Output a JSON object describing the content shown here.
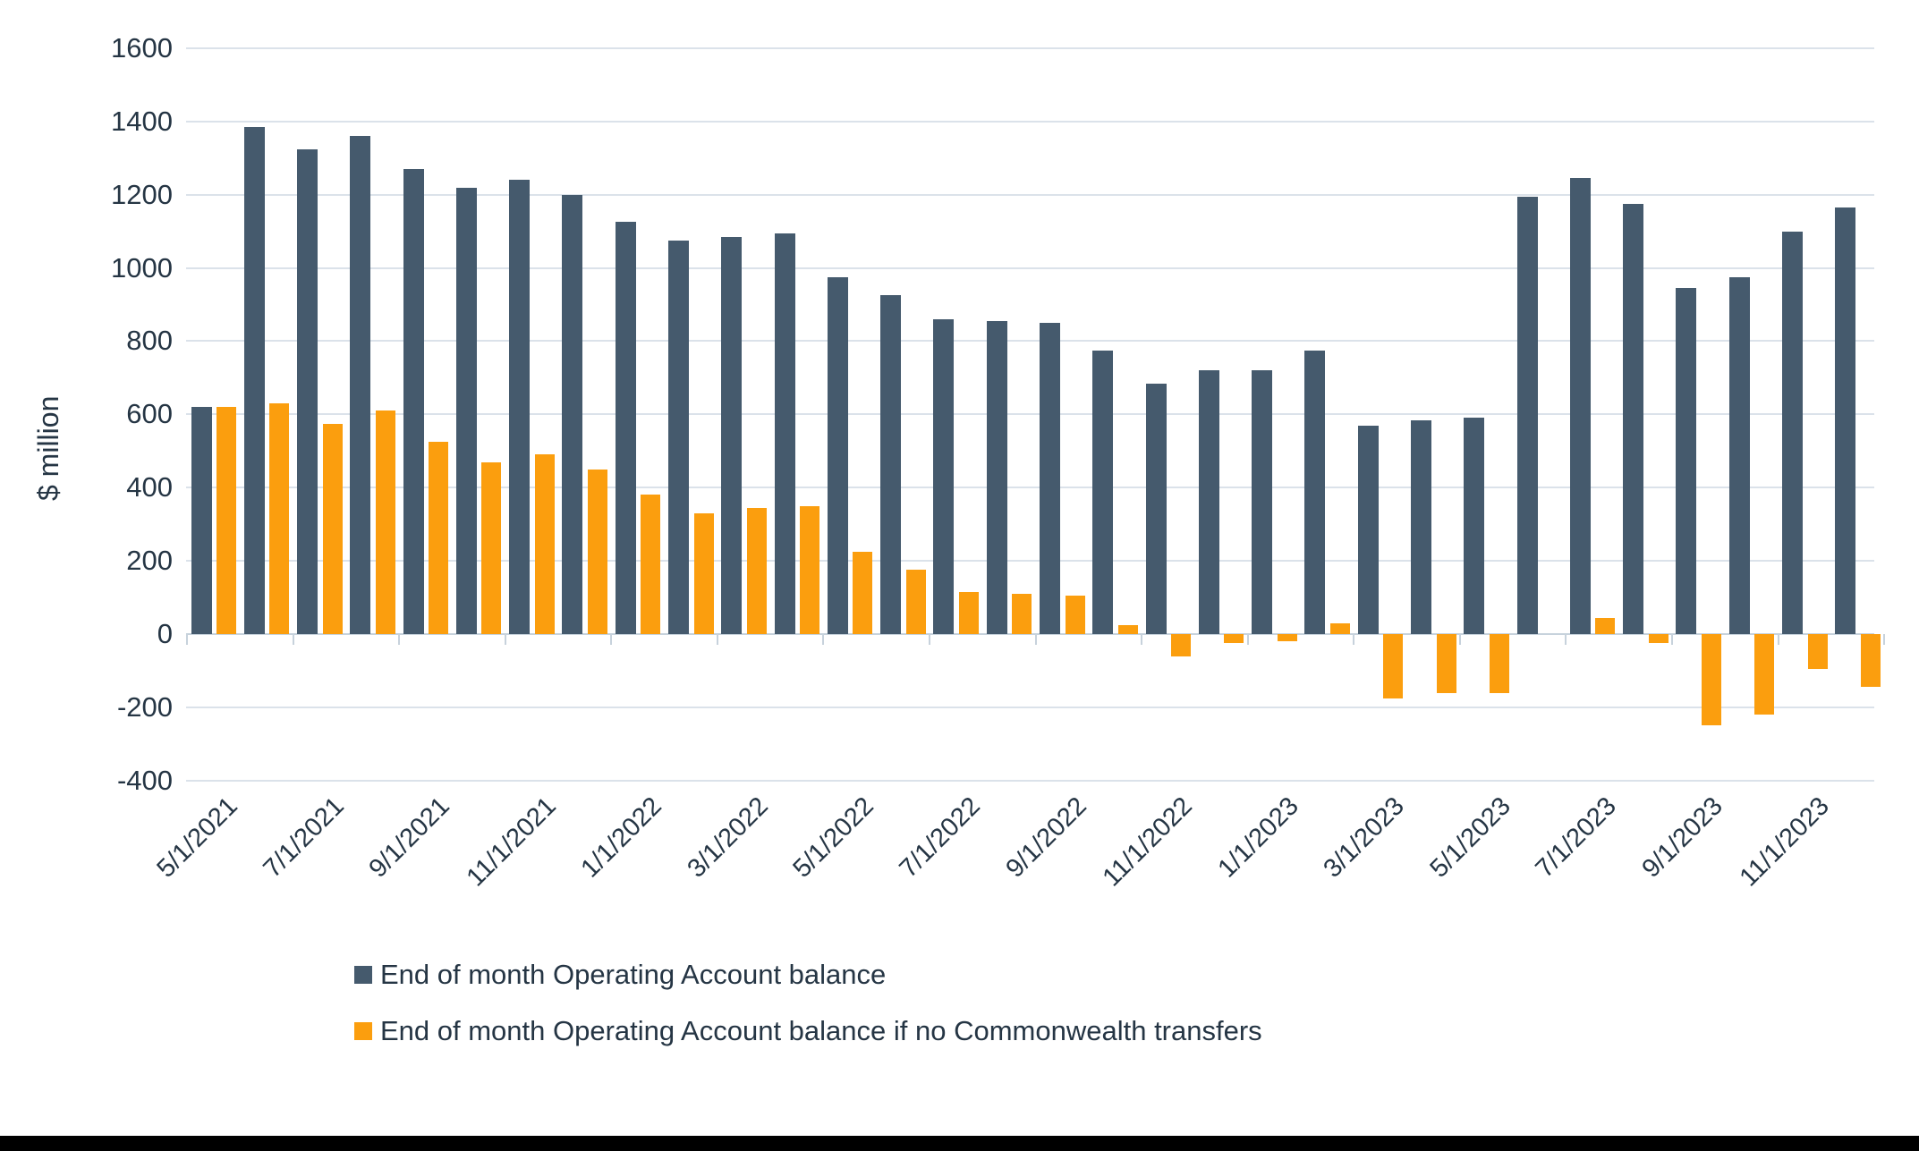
{
  "chart_data": {
    "type": "bar",
    "title": "",
    "ylabel": "$ million",
    "xlabel": "",
    "ylim": [
      -400,
      1600
    ],
    "ytick_step": 200,
    "y_tick_labels": [
      "1600",
      "1400",
      "1200",
      "1000",
      "800",
      "600",
      "400",
      "200",
      "0",
      "-200",
      "-400"
    ],
    "grid": true,
    "legend_position": "bottom-left",
    "categories": [
      "5/1/2021",
      "6/1/2021",
      "7/1/2021",
      "8/1/2021",
      "9/1/2021",
      "10/1/2021",
      "11/1/2021",
      "12/1/2021",
      "1/1/2022",
      "2/1/2022",
      "3/1/2022",
      "4/1/2022",
      "5/1/2022",
      "6/1/2022",
      "7/1/2022",
      "8/1/2022",
      "9/1/2022",
      "10/1/2022",
      "11/1/2022",
      "12/1/2022",
      "1/1/2023",
      "2/1/2023",
      "3/1/2023",
      "4/1/2023",
      "5/1/2023",
      "6/1/2023",
      "7/1/2023",
      "8/1/2023",
      "9/1/2023",
      "10/1/2023",
      "11/1/2023",
      "12/1/2023"
    ],
    "x_tick_labels": [
      "5/1/2021",
      "7/1/2021",
      "9/1/2021",
      "11/1/2021",
      "1/1/2022",
      "3/1/2022",
      "5/1/2022",
      "7/1/2022",
      "9/1/2022",
      "11/1/2022",
      "1/1/2023",
      "3/1/2023",
      "5/1/2023",
      "7/1/2023",
      "9/1/2023",
      "11/1/2023"
    ],
    "series": [
      {
        "name": "End of month Operating Account balance",
        "color": "#455a6d",
        "values": [
          620,
          1385,
          1325,
          1360,
          1270,
          1220,
          1240,
          1200,
          1125,
          1075,
          1085,
          1095,
          975,
          925,
          860,
          855,
          850,
          775,
          685,
          720,
          720,
          775,
          570,
          585,
          590,
          1195,
          1245,
          1175,
          945,
          975,
          1100,
          1165
        ]
      },
      {
        "name": "End of month Operating Account balance if no Commonwealth transfers",
        "color": "#fb9e0e",
        "values": [
          620,
          630,
          575,
          610,
          525,
          470,
          490,
          450,
          380,
          330,
          345,
          350,
          225,
          175,
          115,
          110,
          105,
          25,
          -60,
          -25,
          -20,
          30,
          -175,
          -160,
          -160,
          0,
          45,
          -25,
          -250,
          -220,
          -95,
          -145
        ]
      }
    ]
  }
}
